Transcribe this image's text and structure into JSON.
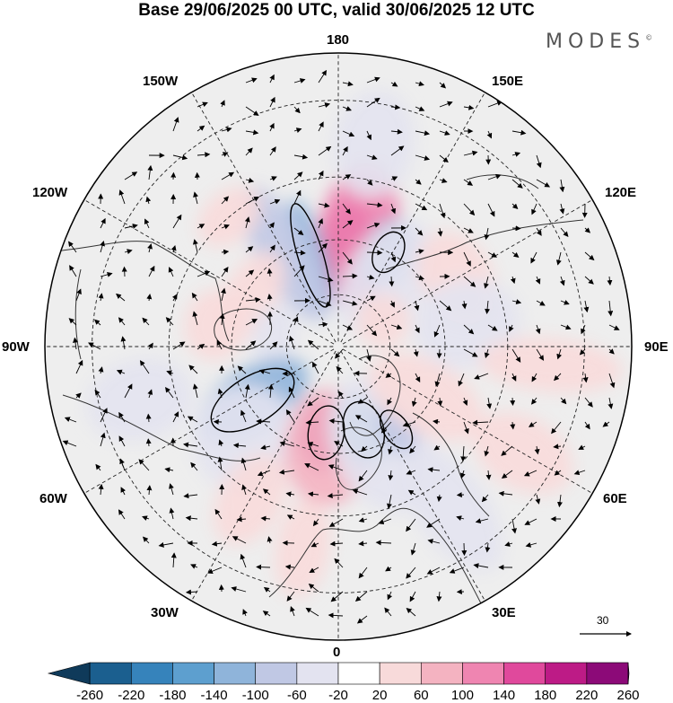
{
  "title": "Base 29/06/2025 00 UTC, valid 30/06/2025 12 UTC",
  "logo": "MODES",
  "longitude_labels": {
    "lon_180": "180",
    "lon_150e": "150E",
    "lon_120e": "120E",
    "lon_90e": "90E",
    "lon_60e": "60E",
    "lon_30e": "30E",
    "lon_0": "0",
    "lon_30w": "30W",
    "lon_60w": "60W",
    "lon_90w": "90W",
    "lon_120w": "120W",
    "lon_150w": "150W"
  },
  "reference_vector": "30",
  "colorbar": {
    "ticks": [
      "-260",
      "-220",
      "-180",
      "-140",
      "-100",
      "-60",
      "-20",
      "20",
      "60",
      "100",
      "140",
      "180",
      "220",
      "260"
    ],
    "colors": [
      "#0f3a5a",
      "#1b5f8f",
      "#3683bb",
      "#5d9fcf",
      "#8fb4da",
      "#c0c8e4",
      "#e3e3f0",
      "#ffffff",
      "#f8dada",
      "#f4b3c1",
      "#ef85b1",
      "#e0499c",
      "#bd1b86",
      "#8c0a78",
      "#5a0a70"
    ]
  },
  "anomaly_blobs": [
    {
      "lon": 175,
      "colat": 38,
      "value": 200,
      "rx": 28,
      "ry": 52
    },
    {
      "lon": 170,
      "colat": 42,
      "value": 100,
      "rx": 45,
      "ry": 80
    },
    {
      "lon": -163,
      "colat": 36,
      "value": -140,
      "rx": 18,
      "ry": 65
    },
    {
      "lon": -150,
      "colat": 40,
      "value": -80,
      "rx": 30,
      "ry": 85
    },
    {
      "lon": 152,
      "colat": 40,
      "value": -140,
      "rx": 28,
      "ry": 40
    },
    {
      "lon": 145,
      "colat": 32,
      "value": -60,
      "rx": 45,
      "ry": 70
    },
    {
      "lon": -140,
      "colat": 60,
      "value": 20,
      "rx": 40,
      "ry": 28
    },
    {
      "lon": -120,
      "colat": 38,
      "value": 40,
      "rx": 55,
      "ry": 30
    },
    {
      "lon": -100,
      "colat": 25,
      "value": -60,
      "rx": 35,
      "ry": 25
    },
    {
      "lon": -100,
      "colat": 46,
      "value": 40,
      "rx": 40,
      "ry": 35
    },
    {
      "lon": -58,
      "colat": 38,
      "value": -140,
      "rx": 35,
      "ry": 70
    },
    {
      "lon": -45,
      "colat": 48,
      "value": -60,
      "rx": 60,
      "ry": 60
    },
    {
      "lon": -8,
      "colat": 33,
      "value": 190,
      "rx": 30,
      "ry": 42
    },
    {
      "lon": -5,
      "colat": 38,
      "value": 90,
      "rx": 50,
      "ry": 65
    },
    {
      "lon": 17,
      "colat": 33,
      "value": -160,
      "rx": 28,
      "ry": 40
    },
    {
      "lon": 24,
      "colat": 40,
      "value": -60,
      "rx": 55,
      "ry": 80
    },
    {
      "lon": 35,
      "colat": 38,
      "value": -100,
      "rx": 20,
      "ry": 30
    },
    {
      "lon": 60,
      "colat": 38,
      "value": 40,
      "rx": 40,
      "ry": 70
    },
    {
      "lon": 35,
      "colat": 68,
      "value": -40,
      "rx": 40,
      "ry": 80
    },
    {
      "lon": 120,
      "colat": 50,
      "value": 30,
      "rx": 55,
      "ry": 40
    },
    {
      "lon": 100,
      "colat": 48,
      "value": -30,
      "rx": 50,
      "ry": 60
    },
    {
      "lon": 85,
      "colat": 72,
      "value": 30,
      "rx": 30,
      "ry": 80
    },
    {
      "lon": 60,
      "colat": 72,
      "value": 30,
      "rx": 40,
      "ry": 60
    },
    {
      "lon": 120,
      "colat": 20,
      "value": 40,
      "rx": 30,
      "ry": 30
    },
    {
      "lon": -30,
      "colat": 62,
      "value": 30,
      "rx": 35,
      "ry": 55
    },
    {
      "lon": -10,
      "colat": 70,
      "value": 30,
      "rx": 30,
      "ry": 55
    },
    {
      "lon": 170,
      "colat": 70,
      "value": -30,
      "rx": 45,
      "ry": 60
    },
    {
      "lon": -75,
      "colat": 70,
      "value": -30,
      "rx": 45,
      "ry": 60
    }
  ]
}
